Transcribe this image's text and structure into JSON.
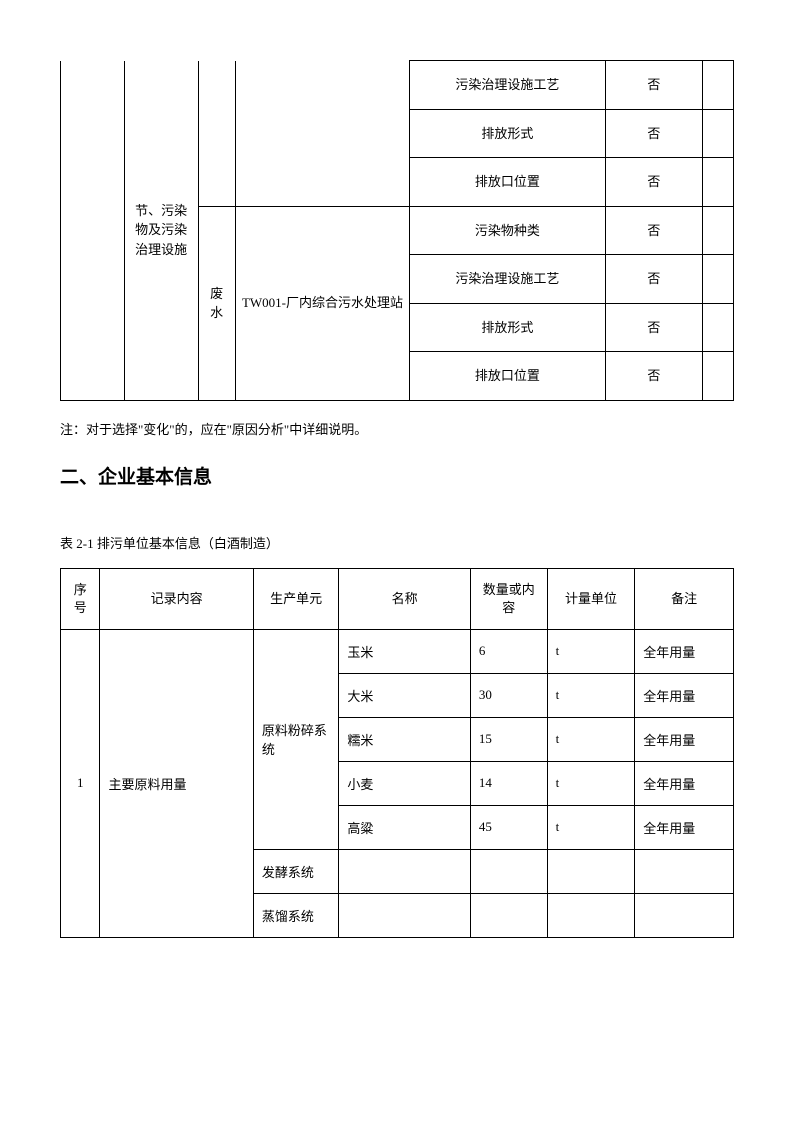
{
  "table1": {
    "col2_label": "节、污染物及污染治理设施",
    "group_a": {
      "rows": [
        {
          "label": "污染治理设施工艺",
          "val": "否"
        },
        {
          "label": "排放形式",
          "val": "否"
        },
        {
          "label": "排放口位置",
          "val": "否"
        }
      ]
    },
    "group_b": {
      "c3": "废水",
      "c4": "TW001-厂内综合污水处理站",
      "rows": [
        {
          "label": "污染物种类",
          "val": "否"
        },
        {
          "label": "污染治理设施工艺",
          "val": "否"
        },
        {
          "label": "排放形式",
          "val": "否"
        },
        {
          "label": "排放口位置",
          "val": "否"
        }
      ]
    }
  },
  "note": "注：对于选择\"变化\"的，应在\"原因分析\"中详细说明。",
  "heading": "二、企业基本信息",
  "caption": "表 2-1 排污单位基本信息（白酒制造）",
  "table2": {
    "headers": [
      "序号",
      "记录内容",
      "生产单元",
      "名称",
      "数量或内容",
      "计量单位",
      "备注"
    ],
    "seq": "1",
    "record": "主要原料用量",
    "unit1": "原料粉碎系统",
    "unit2": "发酵系统",
    "unit3": "蒸馏系统",
    "rows": [
      {
        "name": "玉米",
        "qty": "6",
        "unit": "t",
        "remark": "全年用量"
      },
      {
        "name": "大米",
        "qty": "30",
        "unit": "t",
        "remark": "全年用量"
      },
      {
        "name": "糯米",
        "qty": "15",
        "unit": "t",
        "remark": "全年用量"
      },
      {
        "name": "小麦",
        "qty": "14",
        "unit": "t",
        "remark": "全年用量"
      },
      {
        "name": "高粱",
        "qty": "45",
        "unit": "t",
        "remark": "全年用量"
      }
    ]
  }
}
